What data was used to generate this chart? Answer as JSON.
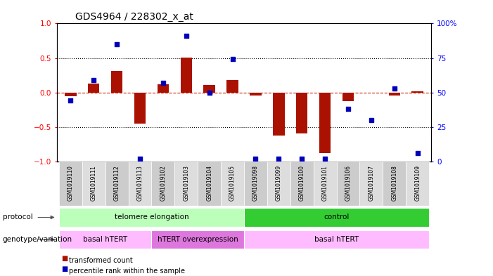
{
  "title": "GDS4964 / 228302_x_at",
  "samples": [
    "GSM1019110",
    "GSM1019111",
    "GSM1019112",
    "GSM1019113",
    "GSM1019102",
    "GSM1019103",
    "GSM1019104",
    "GSM1019105",
    "GSM1019098",
    "GSM1019099",
    "GSM1019100",
    "GSM1019101",
    "GSM1019106",
    "GSM1019107",
    "GSM1019108",
    "GSM1019109"
  ],
  "bar_values": [
    -0.05,
    0.13,
    0.31,
    -0.45,
    0.12,
    0.51,
    0.11,
    0.18,
    -0.04,
    -0.62,
    -0.59,
    -0.88,
    -0.13,
    0.0,
    -0.04,
    0.02
  ],
  "dot_values": [
    44,
    59,
    85,
    2,
    57,
    91,
    50,
    74,
    2,
    2,
    2,
    2,
    38,
    30,
    53,
    6
  ],
  "bar_color": "#aa1100",
  "dot_color": "#0000bb",
  "hline_color": "#cc2200",
  "protocol_groups": [
    {
      "label": "telomere elongation",
      "start": 0,
      "end": 8,
      "color": "#bbffbb"
    },
    {
      "label": "control",
      "start": 8,
      "end": 16,
      "color": "#33cc33"
    }
  ],
  "genotype_groups": [
    {
      "label": "basal hTERT",
      "start": 0,
      "end": 4,
      "color": "#ffbbff"
    },
    {
      "label": "hTERT overexpression",
      "start": 4,
      "end": 8,
      "color": "#dd77dd"
    },
    {
      "label": "basal hTERT",
      "start": 8,
      "end": 16,
      "color": "#ffbbff"
    }
  ],
  "left_yticks": [
    -1,
    -0.5,
    0,
    0.5,
    1
  ],
  "right_yticks": [
    0,
    25,
    50,
    75,
    100
  ],
  "ylim": [
    -1,
    1
  ],
  "right_ylim": [
    0,
    100
  ],
  "hline_dotted_vals": [
    0.5,
    -0.5
  ],
  "legend_items": [
    {
      "color": "#aa1100",
      "label": "transformed count"
    },
    {
      "color": "#0000bb",
      "label": "percentile rank within the sample"
    }
  ]
}
